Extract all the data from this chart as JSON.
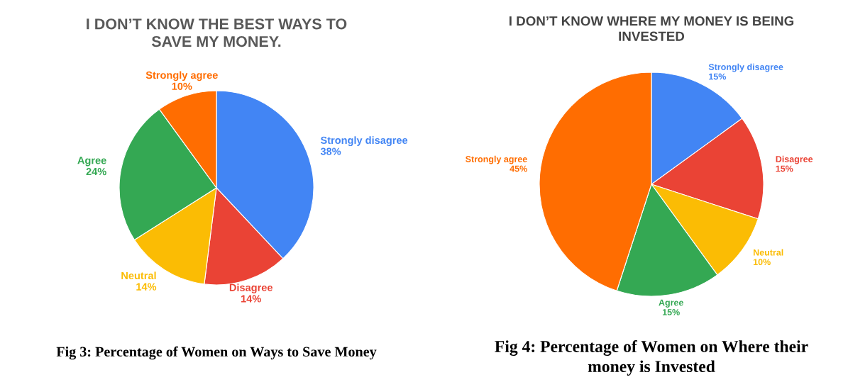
{
  "chart_data": [
    {
      "type": "pie",
      "title": "I DON’T KNOW THE BEST WAYS TO\nSAVE MY MONEY.",
      "categories": [
        "Strongly disagree",
        "Disagree",
        "Neutral",
        "Agree",
        "Strongly agree"
      ],
      "values": [
        38,
        14,
        14,
        24,
        10
      ],
      "value_labels": [
        "38%",
        "14%",
        "14%",
        "24%",
        "10%"
      ],
      "colors": [
        "#4285f4",
        "#ea4335",
        "#fbbc04",
        "#34a853",
        "#ff6d01"
      ],
      "annotations": [
        "Fig 3: Percentage of Women on Ways to Save Money"
      ]
    },
    {
      "type": "pie",
      "title": "I DON’T KNOW WHERE MY MONEY IS BEING\nINVESTED",
      "categories": [
        "Strongly disagree",
        "Disagree",
        "Neutral",
        "Agree",
        "Strongly agree"
      ],
      "values": [
        15,
        15,
        10,
        15,
        45
      ],
      "value_labels": [
        "15%",
        "15%",
        "10%",
        "15%",
        "45%"
      ],
      "colors": [
        "#4285f4",
        "#ea4335",
        "#fbbc04",
        "#34a853",
        "#ff6d01"
      ],
      "annotations": [
        "Fig 4: Percentage of Women on Where their\nmoney is Invested"
      ]
    }
  ]
}
